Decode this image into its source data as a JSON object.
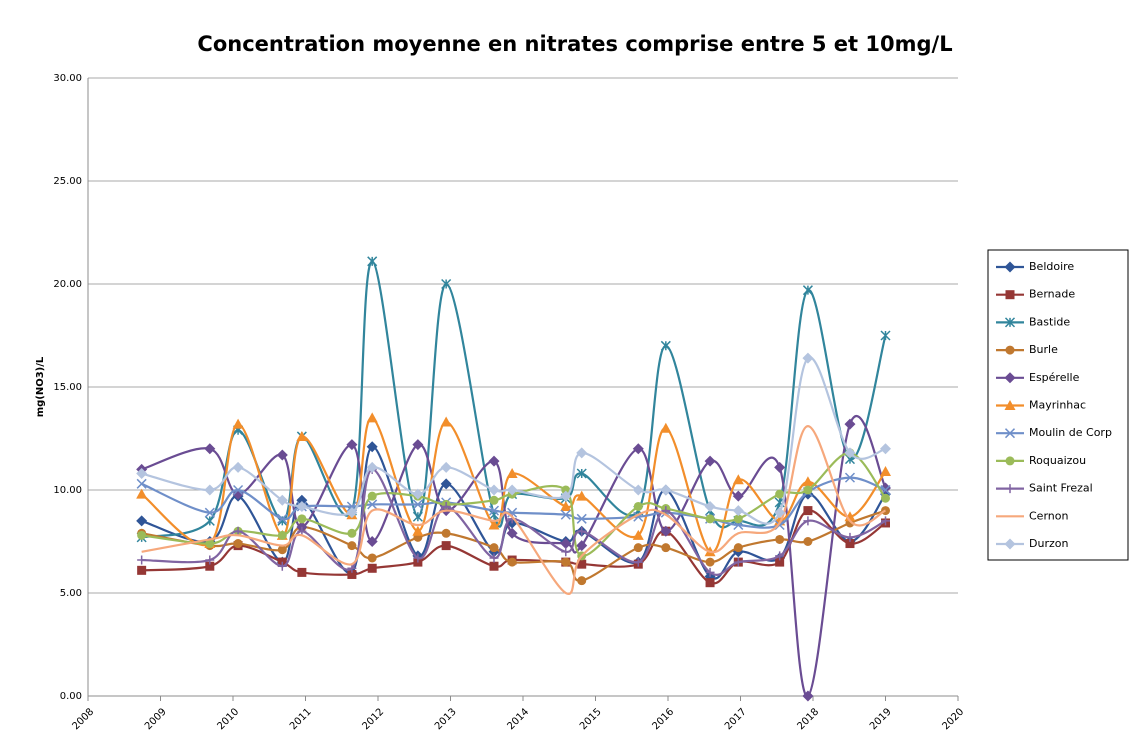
{
  "chart_data": {
    "type": "line",
    "title": "Concentration moyenne en nitrates comprise entre 5 et 10mg/L",
    "y_label": "mg(NO3)/L",
    "x": [
      2008.74,
      2009.68,
      2010.07,
      2010.68,
      2010.95,
      2011.64,
      2011.92,
      2012.55,
      2012.94,
      2013.6,
      2013.85,
      2014.59,
      2014.81,
      2015.59,
      2015.97,
      2016.58,
      2016.97,
      2017.54,
      2017.93,
      2018.51,
      2019.0
    ],
    "xlim": [
      2008,
      2020
    ],
    "xticks": [
      2008,
      2009,
      2010,
      2011,
      2012,
      2013,
      2014,
      2015,
      2016,
      2017,
      2018,
      2019,
      2020
    ],
    "ylim": [
      0,
      30
    ],
    "yticks": [
      {
        "value": 0,
        "label": "0.00"
      },
      {
        "value": 5,
        "label": "5.00"
      },
      {
        "value": 10,
        "label": "10.00"
      },
      {
        "value": 15,
        "label": "15.00"
      },
      {
        "value": 20,
        "label": "20.00"
      },
      {
        "value": 25,
        "label": "25.00"
      },
      {
        "value": 30,
        "label": "30.00"
      }
    ],
    "grid": true,
    "legend": "right",
    "smooth": true,
    "series": [
      {
        "name": "Beldoire",
        "color": "#2f5597",
        "marker": "diamond",
        "values": [
          8.5,
          7.5,
          9.7,
          6.5,
          9.5,
          6.0,
          12.1,
          6.8,
          10.3,
          7.0,
          8.4,
          7.5,
          8.0,
          6.5,
          10.0,
          5.8,
          7.0,
          6.7,
          9.8,
          7.5,
          9.8
        ]
      },
      {
        "name": "Bernade",
        "color": "#953735",
        "marker": "square",
        "values": [
          6.1,
          6.3,
          7.3,
          6.5,
          6.0,
          5.9,
          6.2,
          6.5,
          7.3,
          6.3,
          6.6,
          6.5,
          6.4,
          6.4,
          8.0,
          5.5,
          6.5,
          6.5,
          9.0,
          7.4,
          8.4
        ]
      },
      {
        "name": "Bastide",
        "color": "#31859c",
        "marker": "star",
        "values": [
          7.7,
          8.5,
          12.9,
          8.5,
          12.6,
          9.0,
          21.1,
          8.7,
          20.0,
          8.8,
          9.8,
          9.6,
          10.8,
          9.0,
          17.0,
          9.0,
          8.5,
          9.4,
          19.7,
          11.5,
          17.5
        ]
      },
      {
        "name": "Burle",
        "color": "#c0782f",
        "marker": "circle",
        "values": [
          7.9,
          7.3,
          7.4,
          7.1,
          8.2,
          7.3,
          6.7,
          7.7,
          7.9,
          7.2,
          6.5,
          6.5,
          5.6,
          7.2,
          7.2,
          6.5,
          7.2,
          7.6,
          7.5,
          8.4,
          9.0
        ]
      },
      {
        "name": "Espérelle",
        "color": "#6a4c93",
        "marker": "diamond",
        "values": [
          11.0,
          12.0,
          9.8,
          11.7,
          8.2,
          12.2,
          7.5,
          12.2,
          9.0,
          11.4,
          7.9,
          7.4,
          7.3,
          12.0,
          8.0,
          11.4,
          9.7,
          11.1,
          0.0,
          13.2,
          10.1
        ]
      },
      {
        "name": "Mayrinhac",
        "color": "#f28e2b",
        "marker": "triangle",
        "values": [
          9.8,
          7.4,
          13.2,
          7.8,
          12.6,
          8.8,
          13.5,
          8.0,
          13.3,
          8.3,
          10.8,
          9.2,
          9.7,
          7.8,
          13.0,
          7.0,
          10.5,
          8.5,
          10.4,
          8.7,
          10.9
        ]
      },
      {
        "name": "Moulin de Corp",
        "color": "#6f8fc9",
        "marker": "x",
        "values": [
          10.3,
          8.9,
          10.0,
          8.6,
          9.2,
          9.2,
          9.3,
          9.3,
          9.4,
          9.0,
          8.9,
          8.8,
          8.6,
          8.7,
          8.9,
          8.6,
          8.3,
          8.3,
          9.9,
          10.6,
          10.0
        ]
      },
      {
        "name": "Roquaizou",
        "color": "#9bbb59",
        "marker": "circle",
        "values": [
          7.8,
          7.4,
          8.0,
          7.8,
          8.6,
          7.9,
          9.7,
          9.7,
          9.3,
          9.5,
          9.8,
          10.0,
          6.8,
          9.2,
          9.1,
          8.6,
          8.6,
          9.8,
          10.0,
          11.8,
          9.6
        ]
      },
      {
        "name": "Saint Frezal",
        "color": "#8064a2",
        "marker": "plus",
        "values": [
          6.6,
          6.6,
          8.0,
          6.3,
          8.0,
          6.2,
          11.0,
          6.7,
          9.2,
          6.7,
          8.6,
          7.0,
          8.0,
          6.5,
          9.0,
          6.0,
          6.5,
          6.8,
          8.5,
          7.7,
          8.5
        ]
      },
      {
        "name": "Cernon",
        "color": "#f6a87c",
        "marker": "none",
        "values": [
          7.0,
          7.6,
          7.8,
          7.3,
          7.8,
          6.4,
          9.0,
          8.3,
          9.0,
          8.5,
          8.7,
          5.0,
          6.8,
          8.8,
          8.8,
          7.0,
          7.9,
          8.4,
          13.1,
          8.5,
          9.0
        ]
      },
      {
        "name": "Durzon",
        "color": "#b4c4df",
        "marker": "diamond",
        "values": [
          10.8,
          10.0,
          11.1,
          9.5,
          9.2,
          8.9,
          11.1,
          9.8,
          11.1,
          10.0,
          10.0,
          9.7,
          11.8,
          10.0,
          10.0,
          9.2,
          9.0,
          8.9,
          16.4,
          11.8,
          12.0
        ]
      }
    ]
  }
}
